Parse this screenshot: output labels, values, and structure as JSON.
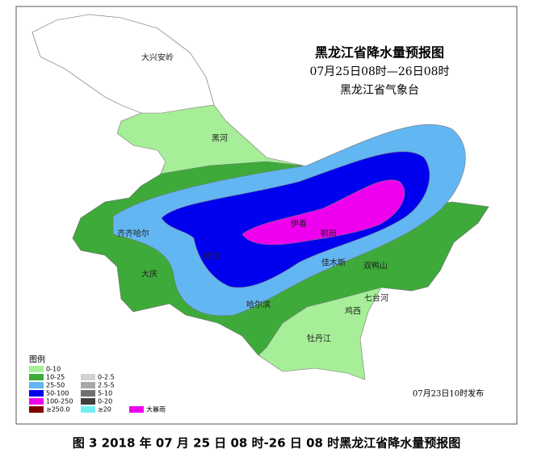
{
  "map": {
    "title_lines": [
      "黑龙江省降水量预报图",
      "07月25日08时—26日08时",
      "黑龙江省气象台"
    ],
    "places": [
      "大兴安岭",
      "黑河",
      "齐齐哈尔",
      "大庆",
      "绥化",
      "伊春",
      "鹤岗",
      "佳木斯",
      "双鸭山",
      "哈尔滨",
      "七台河",
      "鸡西",
      "牡丹江"
    ],
    "legend": {
      "title": "图例",
      "items": [
        {
          "label": "0-10",
          "color": "#a6ee98"
        },
        {
          "label": "10-25",
          "color": "#3daa3a"
        },
        {
          "label": "25-50",
          "color": "#62b6f2"
        },
        {
          "label": "50-100",
          "color": "#0000ee"
        },
        {
          "label": "100-250",
          "color": "#ee00ee"
        },
        {
          "label": "≥250.0",
          "color": "#800000"
        },
        {
          "label": "0-2.5",
          "color": "#d2d2d2"
        },
        {
          "label": "2.5-5",
          "color": "#a8a8a8"
        },
        {
          "label": "5-10",
          "color": "#707070"
        },
        {
          "label": "0-20",
          "color": "#404040"
        },
        {
          "label": "≥20",
          "color": "#70f0f0"
        },
        {
          "label": "大暴雨",
          "color": "#ee00ee"
        }
      ]
    },
    "issued": "07月23日10时发布"
  },
  "caption": "图 3 2018 年 07 月 25 日 08 时-26 日 08 时黑龙江省降水量预报图"
}
